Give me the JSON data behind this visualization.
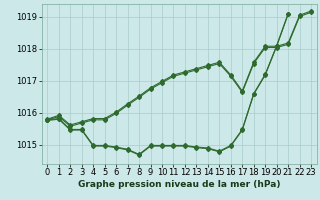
{
  "title": "Graphe pression niveau de la mer (hPa)",
  "bg_color": "#cde8e8",
  "grid_color": "#aacccc",
  "line_color": "#2d6a2d",
  "ylim": [
    1014.4,
    1019.4
  ],
  "yticks": [
    1015,
    1016,
    1017,
    1018,
    1019
  ],
  "xticks": [
    0,
    1,
    2,
    3,
    4,
    5,
    6,
    7,
    8,
    9,
    10,
    11,
    12,
    13,
    14,
    15,
    16,
    17,
    18,
    19,
    20,
    21,
    22,
    23
  ],
  "tick_fontsize": 6,
  "title_fontsize": 6.5,
  "line_width": 0.8,
  "marker_size": 2.0,
  "s1": [
    1015.8,
    1015.92,
    1015.62,
    1015.72,
    1015.82,
    1015.82,
    1016.02,
    1016.28,
    1016.52,
    1016.78,
    1016.98,
    1017.18,
    1017.28,
    1017.38,
    1017.48,
    1017.58,
    1017.18,
    1016.68,
    1017.58,
    1018.08,
    1018.08,
    1018.18,
    1019.05,
    1019.18
  ],
  "s2": [
    1015.78,
    1015.88,
    1015.58,
    1015.68,
    1015.78,
    1015.78,
    1015.98,
    1016.24,
    1016.48,
    1016.74,
    1016.94,
    1017.14,
    1017.24,
    1017.34,
    1017.44,
    1017.54,
    1017.14,
    1016.64,
    1017.54,
    1018.04,
    1018.04,
    1018.14,
    1019.01,
    1019.14
  ],
  "s3_x": [
    0,
    1,
    2,
    3,
    4,
    5,
    6,
    7,
    8,
    9,
    10,
    11,
    12,
    13,
    14,
    15,
    16,
    17,
    18,
    19,
    20,
    21
  ],
  "s3": [
    1015.78,
    1015.82,
    1015.48,
    1015.48,
    1014.98,
    1014.98,
    1014.93,
    1014.86,
    1014.7,
    1014.98,
    1014.98,
    1014.98,
    1014.98,
    1014.93,
    1014.9,
    1014.8,
    1014.98,
    1015.48,
    1016.6,
    1017.2,
    1018.1,
    1019.1
  ],
  "s4": [
    1015.76,
    1015.8,
    1015.46,
    1015.46,
    1014.96,
    1014.96,
    1014.91,
    1014.84,
    1014.68,
    1014.96,
    1014.96,
    1014.96,
    1014.96,
    1014.91,
    1014.88,
    1014.78,
    1014.96,
    1015.46,
    1016.58,
    1017.18,
    1018.08,
    1019.08
  ]
}
